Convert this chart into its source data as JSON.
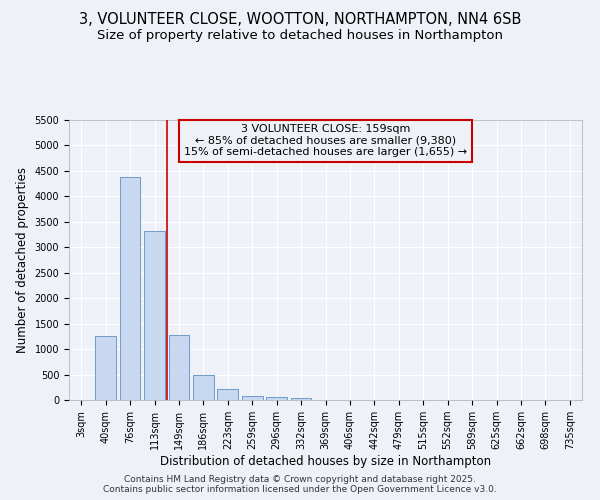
{
  "title_line1": "3, VOLUNTEER CLOSE, WOOTTON, NORTHAMPTON, NN4 6SB",
  "title_line2": "Size of property relative to detached houses in Northampton",
  "xlabel": "Distribution of detached houses by size in Northampton",
  "ylabel": "Number of detached properties",
  "categories": [
    "3sqm",
    "40sqm",
    "76sqm",
    "113sqm",
    "149sqm",
    "186sqm",
    "223sqm",
    "259sqm",
    "296sqm",
    "332sqm",
    "369sqm",
    "406sqm",
    "442sqm",
    "479sqm",
    "515sqm",
    "552sqm",
    "589sqm",
    "625sqm",
    "662sqm",
    "698sqm",
    "735sqm"
  ],
  "values": [
    0,
    1260,
    4380,
    3310,
    1280,
    500,
    220,
    80,
    50,
    40,
    0,
    0,
    0,
    0,
    0,
    0,
    0,
    0,
    0,
    0,
    0
  ],
  "bar_color": "#c8d8f0",
  "bar_edgecolor": "#6090c0",
  "vline_x_index": 3.5,
  "vline_color": "#cc0000",
  "annotation_text": "3 VOLUNTEER CLOSE: 159sqm\n← 85% of detached houses are smaller (9,380)\n15% of semi-detached houses are larger (1,655) →",
  "annotation_box_facecolor": "#eef2f8",
  "annotation_box_edgecolor": "#cc0000",
  "ylim": [
    0,
    5500
  ],
  "yticks": [
    0,
    500,
    1000,
    1500,
    2000,
    2500,
    3000,
    3500,
    4000,
    4500,
    5000,
    5500
  ],
  "background_color": "#eef2f8",
  "plot_bg_color": "#eef2f8",
  "grid_color": "#ffffff",
  "footer_text": "Contains HM Land Registry data © Crown copyright and database right 2025.\nContains public sector information licensed under the Open Government Licence v3.0.",
  "title_fontsize": 10.5,
  "subtitle_fontsize": 9.5,
  "tick_fontsize": 7,
  "label_fontsize": 8.5,
  "annotation_fontsize": 8,
  "footer_fontsize": 6.5
}
